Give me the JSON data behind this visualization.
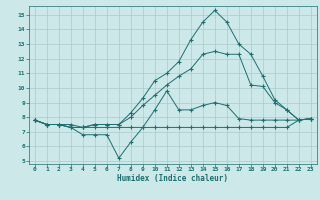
{
  "title": "",
  "xlabel": "Humidex (Indice chaleur)",
  "ylabel": "",
  "xlim": [
    -0.5,
    23.5
  ],
  "ylim": [
    4.8,
    15.6
  ],
  "yticks": [
    5,
    6,
    7,
    8,
    9,
    10,
    11,
    12,
    13,
    14,
    15
  ],
  "xticks": [
    0,
    1,
    2,
    3,
    4,
    5,
    6,
    7,
    8,
    9,
    10,
    11,
    12,
    13,
    14,
    15,
    16,
    17,
    18,
    19,
    20,
    21,
    22,
    23
  ],
  "bg_color": "#cce8e8",
  "grid_color": "#aacccc",
  "line_color": "#1a7070",
  "line1_x": [
    0,
    1,
    2,
    3,
    4,
    5,
    6,
    7,
    8,
    9,
    10,
    11,
    12,
    13,
    14,
    15,
    16,
    17,
    18,
    19,
    20,
    21,
    22,
    23
  ],
  "line1_y": [
    7.8,
    7.5,
    7.5,
    7.5,
    7.3,
    7.3,
    7.3,
    7.3,
    7.3,
    7.3,
    7.3,
    7.3,
    7.3,
    7.3,
    7.3,
    7.3,
    7.3,
    7.3,
    7.3,
    7.3,
    7.3,
    7.3,
    7.8,
    7.9
  ],
  "line2_x": [
    0,
    1,
    2,
    3,
    4,
    5,
    6,
    7,
    8,
    9,
    10,
    11,
    12,
    13,
    14,
    15,
    16,
    17,
    18,
    19,
    20,
    21,
    22,
    23
  ],
  "line2_y": [
    7.8,
    7.5,
    7.5,
    7.3,
    6.8,
    6.8,
    6.8,
    5.2,
    6.3,
    7.3,
    8.5,
    9.8,
    8.5,
    8.5,
    8.8,
    9.0,
    8.8,
    7.9,
    7.8,
    7.8,
    7.8,
    7.8,
    7.8,
    7.9
  ],
  "line3_x": [
    0,
    1,
    2,
    3,
    4,
    5,
    6,
    7,
    8,
    9,
    10,
    11,
    12,
    13,
    14,
    15,
    16,
    17,
    18,
    19,
    20,
    21,
    22,
    23
  ],
  "line3_y": [
    7.8,
    7.5,
    7.5,
    7.3,
    7.3,
    7.5,
    7.5,
    7.5,
    8.0,
    8.8,
    9.5,
    10.2,
    10.8,
    11.3,
    12.3,
    12.5,
    12.3,
    12.3,
    10.2,
    10.1,
    9.0,
    8.5,
    7.8,
    7.9
  ],
  "line4_x": [
    0,
    1,
    2,
    3,
    4,
    5,
    6,
    7,
    8,
    9,
    10,
    11,
    12,
    13,
    14,
    15,
    16,
    17,
    18,
    19,
    20,
    21,
    22,
    23
  ],
  "line4_y": [
    7.8,
    7.5,
    7.5,
    7.3,
    7.3,
    7.5,
    7.5,
    7.5,
    8.3,
    9.3,
    10.5,
    11.0,
    11.8,
    13.3,
    14.5,
    15.3,
    14.5,
    13.0,
    12.3,
    10.8,
    9.2,
    8.5,
    7.8,
    7.9
  ]
}
